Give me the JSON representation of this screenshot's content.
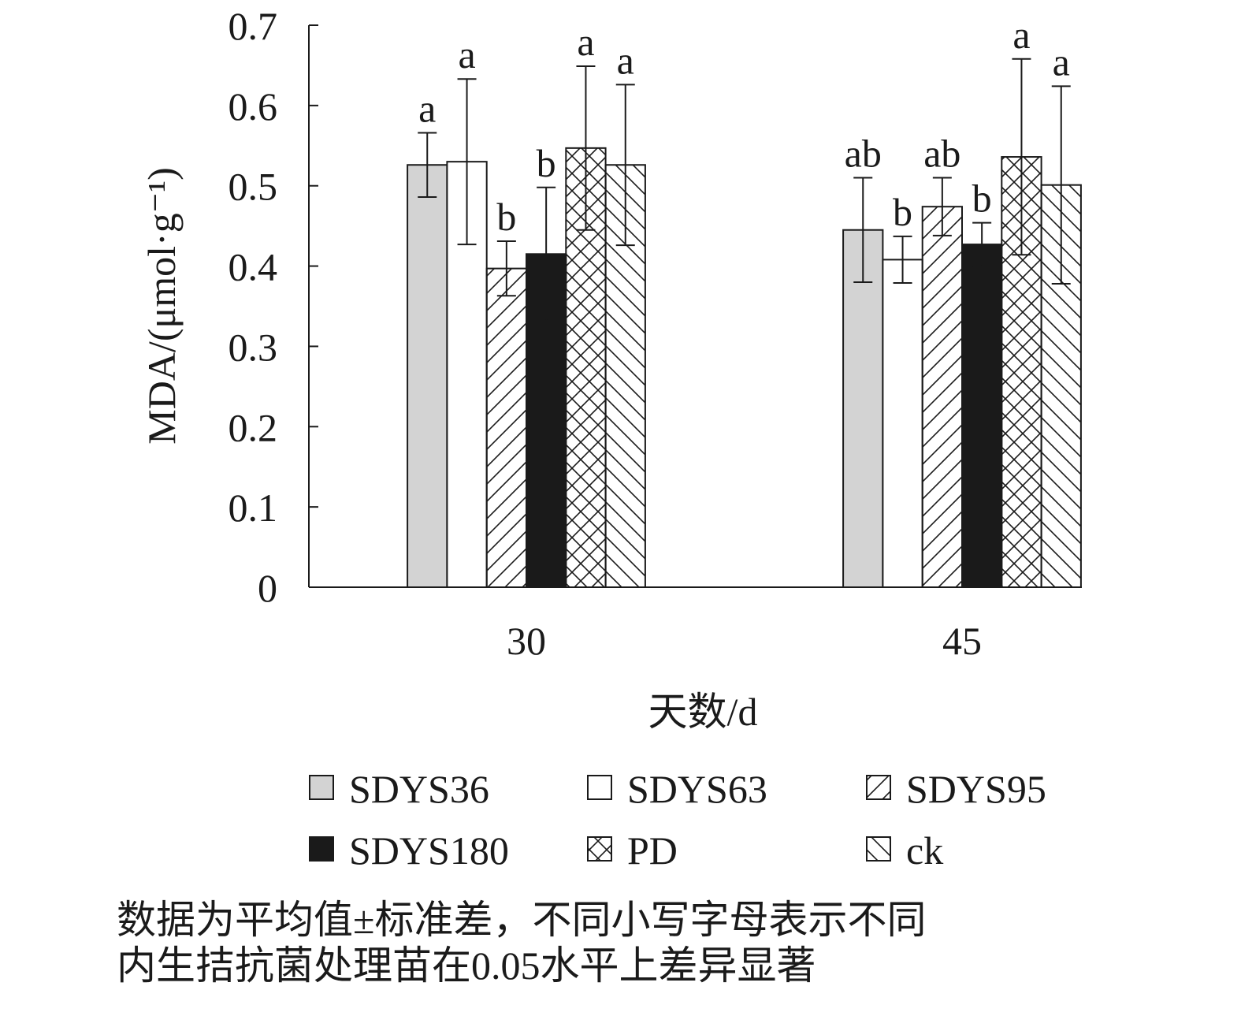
{
  "chart_data": {
    "type": "bar",
    "title": "",
    "xlabel": "天数/d",
    "ylabel": "MDA/(μmol·g⁻¹)",
    "ylim": [
      0,
      0.7
    ],
    "yticks": [
      "0",
      "0.1",
      "0.2",
      "0.3",
      "0.4",
      "0.5",
      "0.6",
      "0.7"
    ],
    "categories": [
      "30",
      "45"
    ],
    "legend_position": "bottom",
    "series": [
      {
        "name": "SDYS36",
        "fill": "gray",
        "values": [
          0.526,
          0.445
        ],
        "errors": [
          0.04,
          0.065
        ],
        "letters": [
          "a",
          "ab"
        ]
      },
      {
        "name": "SDYS63",
        "fill": "white",
        "values": [
          0.53,
          0.408
        ],
        "errors": [
          0.103,
          0.029
        ],
        "letters": [
          "a",
          "b"
        ]
      },
      {
        "name": "SDYS95",
        "fill": "diag-forward",
        "values": [
          0.397,
          0.474
        ],
        "errors": [
          0.034,
          0.036
        ],
        "letters": [
          "b",
          "ab"
        ]
      },
      {
        "name": "SDYS180",
        "fill": "black",
        "values": [
          0.415,
          0.427
        ],
        "errors": [
          0.083,
          0.027
        ],
        "letters": [
          "b",
          "b"
        ]
      },
      {
        "name": "PD",
        "fill": "crosshatch",
        "values": [
          0.547,
          0.536
        ],
        "errors": [
          0.102,
          0.122
        ],
        "letters": [
          "a",
          "a"
        ]
      },
      {
        "name": "ck",
        "fill": "diag-back",
        "values": [
          0.526,
          0.501
        ],
        "errors": [
          0.1,
          0.123
        ],
        "letters": [
          "a",
          "a"
        ]
      }
    ],
    "colors": {
      "gray": "#d3d3d3",
      "black": "#1a1a1a",
      "line": "#1a1a1a"
    }
  },
  "caption": {
    "line1": "数据为平均值±标准差，不同小写字母表示不同",
    "line2": "内生拮抗菌处理苗在0.05水平上差异显著"
  }
}
